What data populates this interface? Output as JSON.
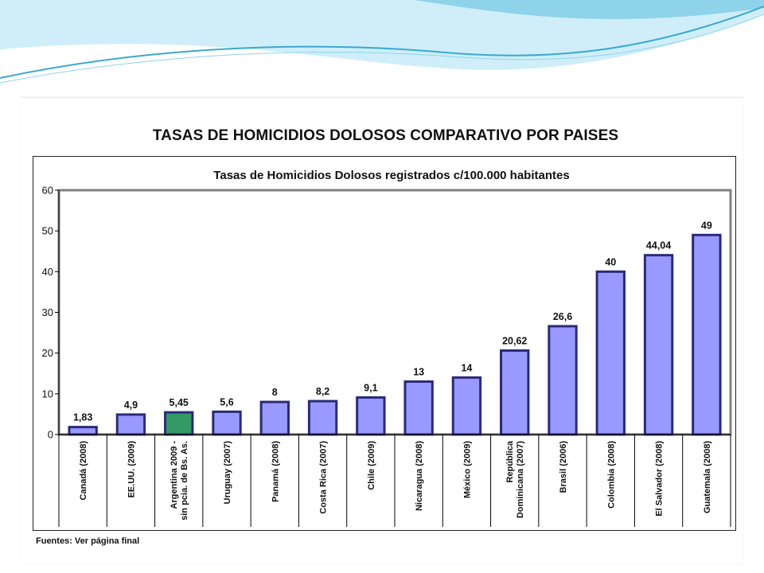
{
  "slide": {
    "title": "TASAS DE HOMICIDIOS DOLOSOS COMPARATIVO POR PAISES",
    "source": "Fuentes: Ver página final"
  },
  "colors": {
    "bar": "#9999ff",
    "bar_highlight": "#339966",
    "bar_stroke": "#2a2a7a",
    "plot_border": "#808080",
    "wave_light": "#cfeefa",
    "wave_mid": "#8fd3ea",
    "wave_dark": "#3aa9cf"
  },
  "chart_data": {
    "type": "bar",
    "title": "Tasas de Homicidios Dolosos registrados c/100.000 habitantes",
    "xlabel": "",
    "ylabel": "",
    "ylim": [
      0,
      60
    ],
    "yticks": [
      "0",
      "10",
      "20",
      "30",
      "40",
      "50",
      "60"
    ],
    "grid": false,
    "categories": [
      [
        "Canadá (2008)"
      ],
      [
        "EE.UU. (2009)"
      ],
      [
        "Argentina 2009 -",
        "sin pcia. de Bs. As."
      ],
      [
        "Uruguay (2007)"
      ],
      [
        "Panamá (2008)"
      ],
      [
        "Costa Rica (2007)"
      ],
      [
        "Chile (2009)"
      ],
      [
        "Nicaragua (2008)"
      ],
      [
        "México (2009)"
      ],
      [
        "República",
        "Dominicana (2007)"
      ],
      [
        "Brasil (2006)"
      ],
      [
        "Colombia (2008)"
      ],
      [
        "El Salvador (2008)"
      ],
      [
        "Guatemala (2008)"
      ]
    ],
    "values": [
      1.83,
      4.9,
      5.45,
      5.6,
      8,
      8.2,
      9.1,
      13,
      14,
      20.62,
      26.6,
      40,
      44.04,
      49
    ],
    "data_labels": [
      "1,83",
      "4,9",
      "5,45",
      "5,6",
      "8",
      "8,2",
      "9,1",
      "13",
      "14",
      "20,62",
      "26,6",
      "40",
      "44,04",
      "49"
    ],
    "highlight_index": 2
  }
}
